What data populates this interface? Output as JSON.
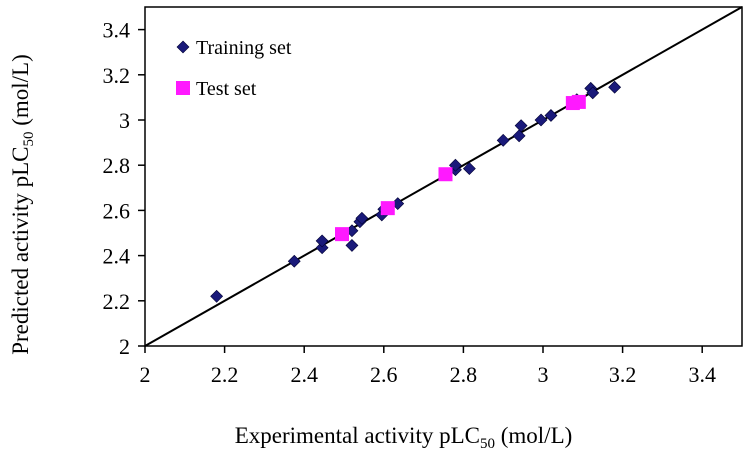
{
  "chart_data": {
    "type": "scatter",
    "title": "",
    "xlabel": {
      "main": "Experimental activity pLC",
      "sub": "50",
      "unit": " (mol/L)"
    },
    "ylabel": {
      "main": "Predicted activity pLC",
      "sub": "50",
      "unit": " (mol/L)"
    },
    "xlim": [
      2,
      3.5
    ],
    "ylim": [
      2,
      3.5
    ],
    "x_ticks": [
      "2",
      "2.2",
      "2.4",
      "2.6",
      "2.8",
      "3",
      "3.2",
      "3.4"
    ],
    "y_ticks": [
      "2",
      "2.2",
      "2.4",
      "2.6",
      "2.8",
      "3",
      "3.2",
      "3.4"
    ],
    "grid": false,
    "reference_line": {
      "from": [
        2,
        2
      ],
      "to": [
        3.5,
        3.5
      ]
    },
    "legend": {
      "position": "top-left"
    },
    "series": [
      {
        "name": "Training set",
        "marker": "diamond",
        "color": "#1a1a7a",
        "points": [
          [
            2.18,
            2.22
          ],
          [
            2.375,
            2.375
          ],
          [
            2.445,
            2.435
          ],
          [
            2.445,
            2.465
          ],
          [
            2.52,
            2.445
          ],
          [
            2.52,
            2.51
          ],
          [
            2.54,
            2.55
          ],
          [
            2.545,
            2.565
          ],
          [
            2.595,
            2.58
          ],
          [
            2.6,
            2.605
          ],
          [
            2.635,
            2.63
          ],
          [
            2.78,
            2.78
          ],
          [
            2.78,
            2.8
          ],
          [
            2.815,
            2.785
          ],
          [
            2.9,
            2.91
          ],
          [
            2.94,
            2.93
          ],
          [
            2.945,
            2.975
          ],
          [
            2.995,
            3.0
          ],
          [
            3.02,
            3.02
          ],
          [
            3.085,
            3.09
          ],
          [
            3.12,
            3.14
          ],
          [
            3.125,
            3.12
          ],
          [
            3.18,
            3.145
          ]
        ]
      },
      {
        "name": "Test set",
        "marker": "square",
        "color": "#ff19ff",
        "points": [
          [
            2.495,
            2.495
          ],
          [
            2.61,
            2.61
          ],
          [
            2.755,
            2.76
          ],
          [
            3.075,
            3.075
          ],
          [
            3.09,
            3.08
          ]
        ]
      }
    ]
  }
}
